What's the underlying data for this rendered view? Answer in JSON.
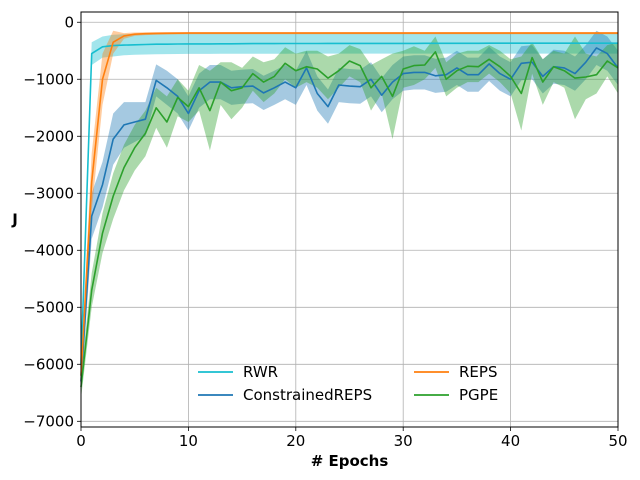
{
  "chart_data": {
    "type": "line",
    "xlabel": "# Epochs",
    "ylabel": "J",
    "xlim": [
      0,
      50
    ],
    "ylim": [
      -7100,
      180
    ],
    "xticks": [
      0,
      10,
      20,
      30,
      40,
      50
    ],
    "yticks": [
      0,
      -1000,
      -2000,
      -3000,
      -4000,
      -5000,
      -6000,
      -7000
    ],
    "xtick_labels": [
      "0",
      "10",
      "20",
      "30",
      "40",
      "50"
    ],
    "ytick_labels": [
      "0",
      "−1000",
      "−2000",
      "−3000",
      "−4000",
      "−5000",
      "−6000",
      "−7000"
    ],
    "grid": true,
    "legend_position": "lower-center",
    "legend_columns": 2,
    "series": [
      {
        "name": "RWR",
        "color": "#17becf",
        "x": [
          0,
          1,
          2,
          3,
          4,
          5,
          6,
          7,
          8,
          9,
          10,
          11,
          12,
          13,
          14,
          15,
          16,
          17,
          18,
          19,
          20,
          21,
          22,
          23,
          24,
          25,
          26,
          27,
          28,
          29,
          30,
          31,
          32,
          33,
          34,
          35,
          36,
          37,
          38,
          39,
          40,
          41,
          42,
          43,
          44,
          45,
          46,
          47,
          48,
          49,
          50
        ],
        "y": [
          -6000,
          -550,
          -430,
          -410,
          -400,
          -395,
          -390,
          -385,
          -385,
          -382,
          -380,
          -380,
          -380,
          -378,
          -378,
          -376,
          -375,
          -375,
          -374,
          -373,
          -372,
          -372,
          -372,
          -371,
          -371,
          -370,
          -370,
          -370,
          -370,
          -370,
          -370,
          -370,
          -369,
          -369,
          -369,
          -369,
          -369,
          -369,
          -368,
          -368,
          -368,
          -368,
          -368,
          -368,
          -368,
          -368,
          -368,
          -368,
          -368,
          -368,
          -368
        ],
        "lower": [
          -6200,
          -750,
          -620,
          -600,
          -580,
          -570,
          -565,
          -560,
          -558,
          -556,
          -555,
          -555,
          -555,
          -554,
          -554,
          -553,
          -552,
          -552,
          -551,
          -551,
          -550,
          -550,
          -550,
          -550,
          -550,
          -550,
          -550,
          -550,
          -550,
          -550,
          -550,
          -550,
          -550,
          -550,
          -550,
          -550,
          -550,
          -550,
          -550,
          -550,
          -550,
          -550,
          -550,
          -550,
          -550,
          -550,
          -550,
          -550,
          -550,
          -550,
          -550
        ],
        "upper": [
          -5800,
          -350,
          -250,
          -220,
          -210,
          -205,
          -200,
          -198,
          -196,
          -195,
          -194,
          -194,
          -194,
          -193,
          -193,
          -192,
          -192,
          -192,
          -192,
          -191,
          -191,
          -191,
          -191,
          -191,
          -190,
          -190,
          -190,
          -190,
          -190,
          -190,
          -190,
          -190,
          -190,
          -190,
          -190,
          -190,
          -190,
          -190,
          -190,
          -190,
          -190,
          -190,
          -190,
          -190,
          -190,
          -190,
          -190,
          -190,
          -190,
          -190,
          -190
        ]
      },
      {
        "name": "ConstrainedREPS",
        "color": "#1f77b4",
        "x": [
          0,
          1,
          2,
          3,
          4,
          5,
          6,
          7,
          8,
          9,
          10,
          11,
          12,
          13,
          14,
          15,
          16,
          17,
          18,
          19,
          20,
          21,
          22,
          23,
          24,
          25,
          26,
          27,
          28,
          29,
          30,
          31,
          32,
          33,
          34,
          35,
          36,
          37,
          38,
          39,
          40,
          41,
          42,
          43,
          44,
          45,
          46,
          47,
          48,
          49,
          50
        ],
        "y": [
          -6300,
          -3400,
          -2850,
          -2050,
          -1800,
          -1750,
          -1700,
          -1020,
          -1150,
          -1300,
          -1600,
          -1200,
          -1050,
          -1050,
          -1150,
          -1130,
          -1120,
          -1240,
          -1150,
          -1050,
          -1150,
          -800,
          -1250,
          -1480,
          -1100,
          -1120,
          -1130,
          -1000,
          -1280,
          -1050,
          -900,
          -880,
          -880,
          -940,
          -920,
          -800,
          -920,
          -920,
          -730,
          -900,
          -1000,
          -720,
          -700,
          -950,
          -780,
          -800,
          -900,
          -700,
          -450,
          -550,
          -800
        ],
        "lower": [
          -6500,
          -3800,
          -3250,
          -2500,
          -2200,
          -2100,
          -2000,
          -1300,
          -1450,
          -1600,
          -1900,
          -1500,
          -1350,
          -1350,
          -1450,
          -1430,
          -1420,
          -1540,
          -1450,
          -1350,
          -1450,
          -1100,
          -1550,
          -1780,
          -1400,
          -1420,
          -1430,
          -1300,
          -1580,
          -1350,
          -1200,
          -1180,
          -1180,
          -1240,
          -1220,
          -1100,
          -1220,
          -1220,
          -1030,
          -1200,
          -1300,
          -1020,
          -1000,
          -1250,
          -1080,
          -1100,
          -1200,
          -1000,
          -750,
          -850,
          -1100
        ],
        "upper": [
          -6100,
          -3000,
          -2450,
          -1600,
          -1400,
          -1400,
          -1400,
          -740,
          -850,
          -1000,
          -1300,
          -900,
          -750,
          -750,
          -850,
          -830,
          -820,
          -940,
          -850,
          -750,
          -850,
          -500,
          -950,
          -1180,
          -800,
          -820,
          -830,
          -700,
          -980,
          -750,
          -600,
          -580,
          -580,
          -640,
          -620,
          -500,
          -620,
          -620,
          -430,
          -600,
          -700,
          -420,
          -400,
          -650,
          -480,
          -500,
          -600,
          -400,
          -150,
          -250,
          -500
        ]
      },
      {
        "name": "REPS",
        "color": "#ff7f0e",
        "x": [
          0,
          1,
          2,
          3,
          4,
          5,
          6,
          7,
          8,
          9,
          10,
          11,
          12,
          13,
          14,
          15,
          16,
          17,
          18,
          19,
          20,
          21,
          22,
          23,
          24,
          25,
          26,
          27,
          28,
          29,
          30,
          31,
          32,
          33,
          34,
          35,
          36,
          37,
          38,
          39,
          40,
          41,
          42,
          43,
          44,
          45,
          46,
          47,
          48,
          49,
          50
        ],
        "y": [
          -6200,
          -2800,
          -1000,
          -350,
          -240,
          -210,
          -200,
          -195,
          -193,
          -192,
          -191,
          -190,
          -190,
          -190,
          -190,
          -190,
          -190,
          -190,
          -190,
          -190,
          -190,
          -190,
          -190,
          -190,
          -190,
          -190,
          -190,
          -190,
          -190,
          -190,
          -190,
          -190,
          -190,
          -190,
          -190,
          -190,
          -190,
          -190,
          -190,
          -190,
          -190,
          -190,
          -190,
          -190,
          -190,
          -190,
          -190,
          -190,
          -190,
          -190,
          -190
        ],
        "lower": [
          -6400,
          -3300,
          -1450,
          -550,
          -290,
          -240,
          -225,
          -220,
          -215,
          -213,
          -212,
          -211,
          -211,
          -210,
          -210,
          -210,
          -210,
          -210,
          -210,
          -210,
          -210,
          -210,
          -210,
          -210,
          -210,
          -210,
          -210,
          -210,
          -210,
          -210,
          -210,
          -210,
          -210,
          -210,
          -210,
          -210,
          -210,
          -210,
          -210,
          -210,
          -210,
          -210,
          -210,
          -210,
          -210,
          -210,
          -210,
          -210,
          -210,
          -210,
          -210
        ],
        "upper": [
          -6000,
          -2300,
          -550,
          -150,
          -190,
          -180,
          -175,
          -172,
          -171,
          -170,
          -170,
          -170,
          -170,
          -170,
          -170,
          -170,
          -170,
          -170,
          -170,
          -170,
          -170,
          -170,
          -170,
          -170,
          -170,
          -170,
          -170,
          -170,
          -170,
          -170,
          -170,
          -170,
          -170,
          -170,
          -170,
          -170,
          -170,
          -170,
          -170,
          -170,
          -170,
          -170,
          -170,
          -170,
          -170,
          -170,
          -170,
          -170,
          -170,
          -170,
          -170
        ]
      },
      {
        "name": "PGPE",
        "color": "#2ca02c",
        "x": [
          0,
          1,
          2,
          3,
          4,
          5,
          6,
          7,
          8,
          9,
          10,
          11,
          12,
          13,
          14,
          15,
          16,
          17,
          18,
          19,
          20,
          21,
          22,
          23,
          24,
          25,
          26,
          27,
          28,
          29,
          30,
          31,
          32,
          33,
          34,
          35,
          36,
          37,
          38,
          39,
          40,
          41,
          42,
          43,
          44,
          45,
          46,
          47,
          48,
          49,
          50
        ],
        "y": [
          -6400,
          -4700,
          -3700,
          -3050,
          -2550,
          -2200,
          -1950,
          -1500,
          -1750,
          -1320,
          -1480,
          -1150,
          -1550,
          -1050,
          -1200,
          -1150,
          -900,
          -1050,
          -950,
          -720,
          -850,
          -780,
          -820,
          -980,
          -850,
          -680,
          -760,
          -1150,
          -950,
          -1300,
          -820,
          -760,
          -750,
          -520,
          -1000,
          -850,
          -770,
          -780,
          -650,
          -780,
          -950,
          -1250,
          -620,
          -1050,
          -780,
          -850,
          -980,
          -960,
          -920,
          -680,
          -800
        ],
        "lower": [
          -6600,
          -5000,
          -4050,
          -3450,
          -2950,
          -2600,
          -2350,
          -1850,
          -2200,
          -1650,
          -1750,
          -1550,
          -2250,
          -1450,
          -1700,
          -1500,
          -1200,
          -1400,
          -1250,
          -1000,
          -1150,
          -1050,
          -1150,
          -1350,
          -1150,
          -950,
          -1050,
          -1550,
          -1250,
          -2050,
          -1150,
          -1100,
          -1000,
          -800,
          -1300,
          -1150,
          -1050,
          -1050,
          -900,
          -1050,
          -1250,
          -1900,
          -900,
          -1450,
          -1050,
          -1150,
          -1700,
          -1350,
          -1250,
          -950,
          -1250
        ],
        "upper": [
          -6200,
          -4400,
          -3350,
          -2650,
          -2150,
          -1800,
          -1550,
          -1150,
          -1300,
          -1000,
          -1200,
          -750,
          -850,
          -700,
          -700,
          -800,
          -600,
          -700,
          -650,
          -440,
          -550,
          -500,
          -500,
          -600,
          -550,
          -400,
          -470,
          -750,
          -650,
          -550,
          -500,
          -420,
          -500,
          -250,
          -700,
          -550,
          -500,
          -500,
          -400,
          -500,
          -650,
          -600,
          -350,
          -650,
          -500,
          -550,
          -250,
          -550,
          -600,
          -400,
          -350
        ]
      }
    ]
  }
}
